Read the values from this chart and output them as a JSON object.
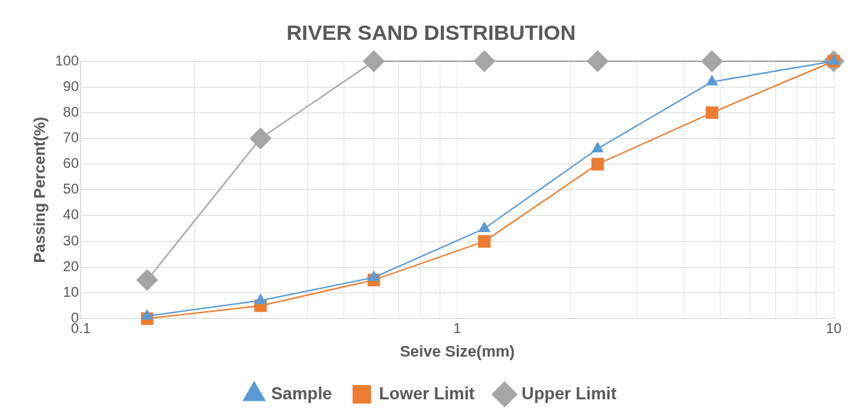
{
  "chart_data": {
    "type": "line",
    "title": "RIVER SAND DISTRIBUTION",
    "xlabel": "Seive Size(mm)",
    "ylabel": "Passing Percent(%)",
    "x": [
      0.15,
      0.3,
      0.6,
      1.18,
      2.36,
      4.75,
      10
    ],
    "series": [
      {
        "name": "Sample",
        "color": "#5b9bd5",
        "marker": "triangle",
        "values": [
          1,
          7,
          16,
          35,
          66,
          92,
          100
        ]
      },
      {
        "name": "Lower Limit",
        "color": "#ed7d31",
        "marker": "square",
        "values": [
          0,
          5,
          15,
          30,
          60,
          80,
          100
        ]
      },
      {
        "name": "Upper Limit",
        "color": "#a5a5a5",
        "marker": "diamond",
        "values": [
          15,
          70,
          100,
          100,
          100,
          100,
          100
        ]
      }
    ],
    "log": "x",
    "xlim": [
      0.1,
      10
    ],
    "xticks": [
      0.1,
      {
        "value": 0.2,
        "label": null
      },
      {
        "value": 0.3,
        "label": null
      },
      {
        "value": 0.4,
        "label": null
      },
      {
        "value": 0.5,
        "label": null
      },
      {
        "value": 0.6,
        "label": null
      },
      {
        "value": 0.7,
        "label": null
      },
      {
        "value": 0.8,
        "label": null
      },
      {
        "value": 0.9,
        "label": null
      },
      1,
      {
        "value": 2,
        "label": null
      },
      {
        "value": 3,
        "label": null
      },
      {
        "value": 4,
        "label": null
      },
      {
        "value": 5,
        "label": null
      },
      {
        "value": 6,
        "label": null
      },
      {
        "value": 7,
        "label": null
      },
      {
        "value": 8,
        "label": null
      },
      {
        "value": 9,
        "label": null
      },
      10
    ],
    "ylim": [
      0,
      100
    ],
    "yticks": [
      0,
      10,
      20,
      30,
      40,
      50,
      60,
      70,
      80,
      90,
      100
    ],
    "grid": true,
    "legend": "bottom",
    "line_style": "solid"
  }
}
